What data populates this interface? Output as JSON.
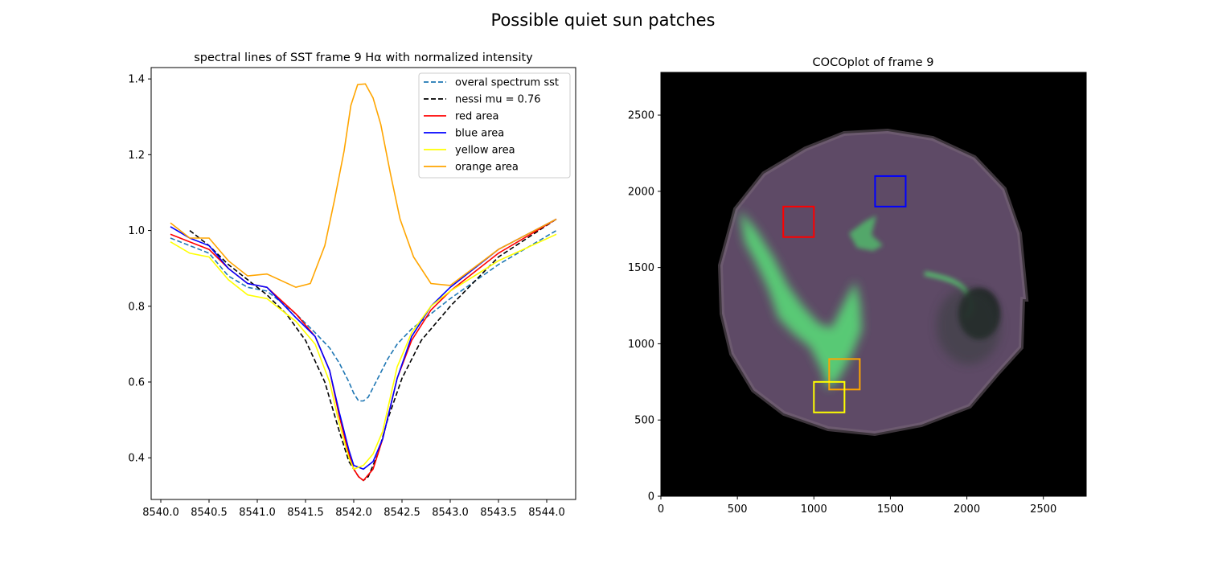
{
  "figure": {
    "title": "Possible quiet sun patches"
  },
  "chart_data": [
    {
      "type": "line",
      "title": "spectral lines of SST frame 9 Hα with normalized intensity",
      "xlabel": "",
      "ylabel": "",
      "xlim": [
        8539.9,
        8544.3
      ],
      "ylim": [
        0.29,
        1.43
      ],
      "xticks": [
        8540.0,
        8540.5,
        8541.0,
        8541.5,
        8542.0,
        8542.5,
        8543.0,
        8543.5,
        8544.0
      ],
      "xtick_labels": [
        "8540.0",
        "8540.5",
        "8541.0",
        "8541.5",
        "8542.0",
        "8542.5",
        "8543.0",
        "8543.5",
        "8544.0"
      ],
      "yticks": [
        0.4,
        0.6,
        0.8,
        1.0,
        1.2,
        1.4
      ],
      "ytick_labels": [
        "0.4",
        "0.6",
        "0.8",
        "1.0",
        "1.2",
        "1.4"
      ],
      "grid": false,
      "legend_position": "top-right",
      "series": [
        {
          "name": "overal spectrum sst",
          "color": "#1f77b4",
          "dash": "dashed",
          "x": [
            8540.1,
            8540.3,
            8540.5,
            8540.7,
            8540.9,
            8541.1,
            8541.4,
            8541.6,
            8541.75,
            8541.85,
            8541.95,
            8542.0,
            8542.05,
            8542.1,
            8542.15,
            8542.25,
            8542.35,
            8542.45,
            8542.6,
            8542.8,
            8543.0,
            8543.5,
            8544.1
          ],
          "y": [
            0.98,
            0.96,
            0.94,
            0.88,
            0.85,
            0.84,
            0.78,
            0.73,
            0.69,
            0.65,
            0.6,
            0.57,
            0.55,
            0.55,
            0.56,
            0.61,
            0.66,
            0.7,
            0.74,
            0.78,
            0.82,
            0.91,
            1.0
          ]
        },
        {
          "name": "nessi mu = 0.76",
          "color": "#000000",
          "dash": "dashed",
          "x": [
            8540.3,
            8540.5,
            8540.7,
            8540.9,
            8541.1,
            8541.3,
            8541.5,
            8541.7,
            8541.85,
            8541.95,
            8542.05,
            8542.1,
            8542.15,
            8542.25,
            8542.35,
            8542.5,
            8542.7,
            8543.0,
            8543.5,
            8544.1
          ],
          "y": [
            1.0,
            0.96,
            0.91,
            0.87,
            0.83,
            0.78,
            0.71,
            0.6,
            0.47,
            0.39,
            0.35,
            0.34,
            0.35,
            0.41,
            0.5,
            0.61,
            0.71,
            0.8,
            0.93,
            1.03
          ]
        },
        {
          "name": "red area",
          "color": "#ff0000",
          "dash": "solid",
          "x": [
            8540.1,
            8540.3,
            8540.5,
            8540.7,
            8540.9,
            8541.1,
            8541.4,
            8541.6,
            8541.75,
            8541.85,
            8541.95,
            8542.0,
            8542.05,
            8542.1,
            8542.2,
            8542.3,
            8542.45,
            8542.6,
            8542.8,
            8543.0,
            8543.5,
            8544.1
          ],
          "y": [
            0.99,
            0.97,
            0.95,
            0.9,
            0.86,
            0.85,
            0.78,
            0.72,
            0.63,
            0.51,
            0.41,
            0.37,
            0.35,
            0.34,
            0.37,
            0.45,
            0.61,
            0.71,
            0.79,
            0.84,
            0.94,
            1.03
          ]
        },
        {
          "name": "blue area",
          "color": "#0000ff",
          "dash": "solid",
          "x": [
            8540.1,
            8540.3,
            8540.5,
            8540.7,
            8540.9,
            8541.1,
            8541.4,
            8541.6,
            8541.75,
            8541.85,
            8541.95,
            8542.0,
            8542.1,
            8542.2,
            8542.3,
            8542.45,
            8542.6,
            8542.8,
            8543.0,
            8543.5,
            8544.1
          ],
          "y": [
            1.01,
            0.98,
            0.96,
            0.9,
            0.86,
            0.85,
            0.77,
            0.72,
            0.63,
            0.52,
            0.42,
            0.38,
            0.37,
            0.39,
            0.45,
            0.61,
            0.72,
            0.8,
            0.85,
            0.95,
            1.03
          ]
        },
        {
          "name": "yellow area",
          "color": "#ffff00",
          "dash": "solid",
          "x": [
            8540.1,
            8540.3,
            8540.5,
            8540.7,
            8540.9,
            8541.1,
            8541.4,
            8541.6,
            8541.75,
            8541.85,
            8541.95,
            8542.0,
            8542.1,
            8542.2,
            8542.3,
            8542.45,
            8542.6,
            8542.8,
            8543.0,
            8543.5,
            8544.1
          ],
          "y": [
            0.97,
            0.94,
            0.93,
            0.87,
            0.83,
            0.82,
            0.76,
            0.7,
            0.6,
            0.49,
            0.4,
            0.37,
            0.38,
            0.41,
            0.47,
            0.64,
            0.73,
            0.8,
            0.84,
            0.92,
            0.99
          ]
        },
        {
          "name": "orange area",
          "color": "#ffa500",
          "dash": "solid",
          "x": [
            8540.1,
            8540.3,
            8540.5,
            8540.7,
            8540.9,
            8541.1,
            8541.4,
            8541.55,
            8541.7,
            8541.8,
            8541.9,
            8541.97,
            8542.04,
            8542.12,
            8542.2,
            8542.28,
            8542.38,
            8542.48,
            8542.62,
            8542.8,
            8543.0,
            8543.5,
            8544.1
          ],
          "y": [
            1.02,
            0.98,
            0.98,
            0.92,
            0.88,
            0.885,
            0.85,
            0.86,
            0.96,
            1.08,
            1.21,
            1.33,
            1.385,
            1.387,
            1.35,
            1.28,
            1.15,
            1.03,
            0.93,
            0.86,
            0.855,
            0.95,
            1.03
          ]
        }
      ]
    },
    {
      "type": "image",
      "title": "COCOplot of frame 9",
      "xlim": [
        0,
        2780
      ],
      "ylim": [
        0,
        2780
      ],
      "xticks": [
        0,
        500,
        1000,
        1500,
        2000,
        2500
      ],
      "xtick_labels": [
        "0",
        "500",
        "1000",
        "1500",
        "2000",
        "2500"
      ],
      "yticks": [
        0,
        500,
        1000,
        1500,
        2000,
        2500
      ],
      "ytick_labels": [
        "0",
        "500",
        "1000",
        "1500",
        "2000",
        "2500"
      ],
      "background": "#000000",
      "disk_color": "#5e4a66",
      "filament_color": "#58e078",
      "sunspot_color": "#1c2420",
      "boxes": [
        {
          "name": "red",
          "color": "#ff0000",
          "x0": 800,
          "x1": 1000,
          "y0": 1700,
          "y1": 1900
        },
        {
          "name": "blue",
          "color": "#0000ff",
          "x0": 1400,
          "x1": 1600,
          "y0": 1900,
          "y1": 2100
        },
        {
          "name": "orange",
          "color": "#ffa500",
          "x0": 1100,
          "x1": 1300,
          "y0": 700,
          "y1": 900
        },
        {
          "name": "yellow",
          "color": "#ffff00",
          "x0": 1000,
          "x1": 1200,
          "y0": 550,
          "y1": 750
        }
      ]
    }
  ]
}
